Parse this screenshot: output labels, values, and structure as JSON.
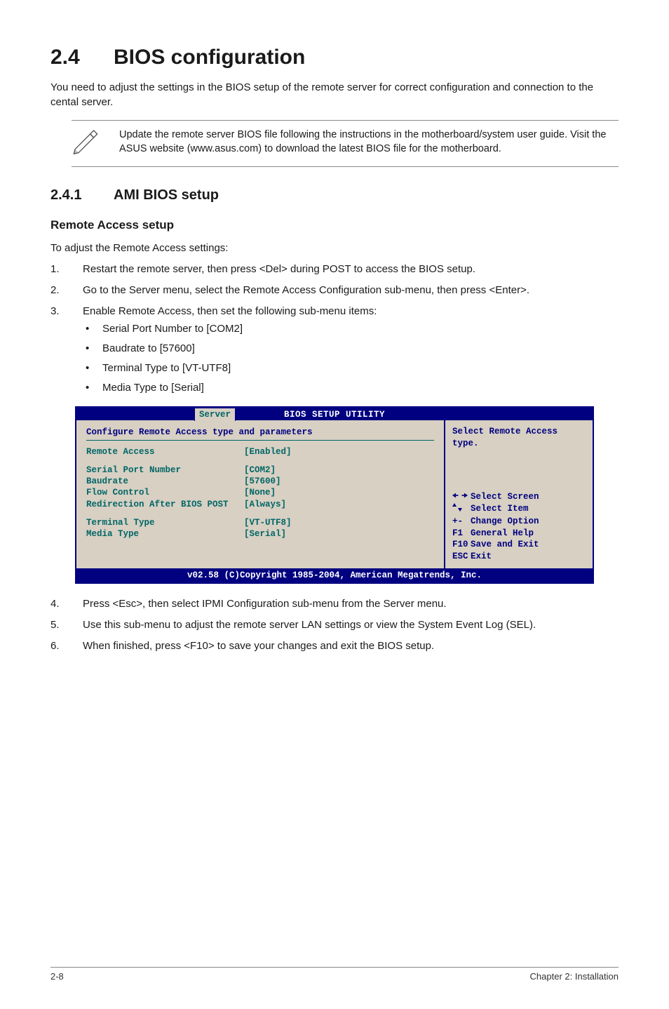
{
  "heading": {
    "num": "2.4",
    "title": "BIOS configuration"
  },
  "intro": "You need to adjust the settings in the BIOS setup of the remote server for correct configuration and connection to the cental server.",
  "note": "Update the remote server BIOS file following the instructions in the motherboard/system user guide. Visit the ASUS website (www.asus.com) to download the latest BIOS file for the motherboard.",
  "subheading": {
    "num": "2.4.1",
    "title": "AMI BIOS setup"
  },
  "section_title": "Remote Access setup",
  "lead": "To adjust the Remote Access settings:",
  "steps_top": [
    {
      "n": "1.",
      "t": "Restart the remote server, then press <Del> during POST to access the BIOS setup."
    },
    {
      "n": "2.",
      "t": "Go to the Server menu, select the Remote Access Configuration sub-menu, then press <Enter>."
    },
    {
      "n": "3.",
      "t": "Enable Remote Access, then set the following sub-menu items:"
    }
  ],
  "bullets": [
    "Serial Port Number to [COM2]",
    "Baudrate to [57600]",
    "Terminal Type to [VT-UTF8]",
    "Media Type to [Serial]"
  ],
  "bios": {
    "colors": {
      "frame": "#000080",
      "panel_bg": "#d7d0c3",
      "label": "#006666",
      "help": "#000080",
      "title_fg": "#ffffff"
    },
    "title": "BIOS SETUP UTILITY",
    "tab": "Server",
    "config_header": "Configure Remote Access type and parameters",
    "rows": [
      {
        "label": "Remote Access",
        "value": "[Enabled]"
      }
    ],
    "rows_block2": [
      {
        "label": "Serial Port Number",
        "value": "[COM2]"
      },
      {
        "label": "Baudrate",
        "value": "[57600]"
      },
      {
        "label": "Flow Control",
        "value": "[None]"
      },
      {
        "label": "Redirection After BIOS POST",
        "value": "[Always]"
      }
    ],
    "rows_block3": [
      {
        "label": "Terminal Type",
        "value": "[VT-UTF8]"
      },
      {
        "label": "Media Type",
        "value": "[Serial]"
      }
    ],
    "help_top": "Select Remote Access type.",
    "help_keys": [
      {
        "sym": "lr",
        "txt": "Select Screen"
      },
      {
        "sym": "ud",
        "txt": "Select Item"
      },
      {
        "sym": "+-",
        "txt": "Change Option"
      },
      {
        "sym": "F1",
        "txt": "General Help"
      },
      {
        "sym": "F10",
        "txt": "Save and Exit"
      },
      {
        "sym": "ESC",
        "txt": "Exit"
      }
    ],
    "footer": "v02.58 (C)Copyright 1985-2004, American Megatrends, Inc."
  },
  "steps_bottom": [
    {
      "n": "4.",
      "t": "Press <Esc>, then select IPMI Configuration sub-menu from the Server menu."
    },
    {
      "n": "5.",
      "t": "Use this sub-menu to adjust the remote server LAN settings or view the System Event Log (SEL)."
    },
    {
      "n": "6.",
      "t": "When finished, press <F10> to save your changes and exit the BIOS setup."
    }
  ],
  "footer": {
    "left": "2-8",
    "right": "Chapter 2: Installation"
  }
}
